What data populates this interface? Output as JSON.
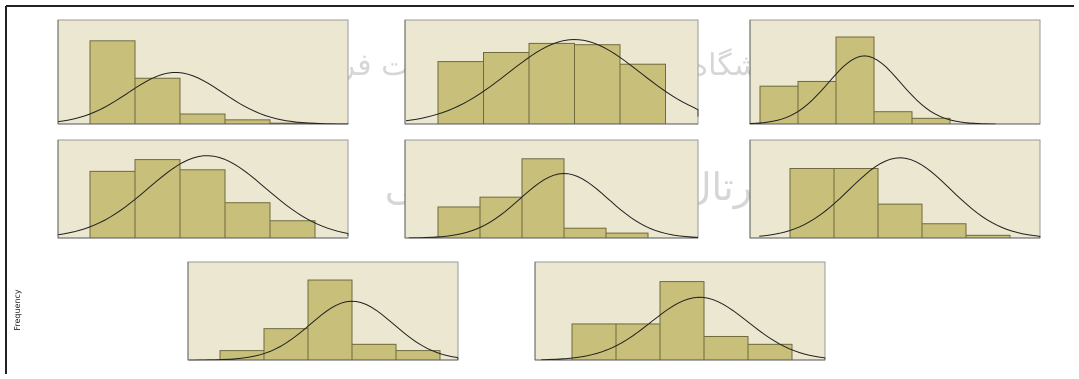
{
  "figure": {
    "left_label": "Frequency",
    "watermark_top": "پژوهشگاه علوم انسانی و مطالعات فرهنگی",
    "watermark_bottom": "پرتال جامع علوم انسانی"
  },
  "chart_data": [
    {
      "type": "bar",
      "ylabel": "Frequency",
      "values": [
        100,
        55,
        12,
        5,
        1
      ],
      "ylim": [
        0,
        125
      ],
      "show_normal_curve": true,
      "normal_curve": {
        "mean": 1.9,
        "sd": 1.05,
        "peak": 62
      }
    },
    {
      "type": "bar",
      "ylabel": "Frequency",
      "values": [
        48,
        55,
        62,
        61,
        46
      ],
      "ylim": [
        0,
        80
      ],
      "show_normal_curve": true,
      "normal_curve": {
        "mean": 3.0,
        "sd": 1.45,
        "peak": 65
      }
    },
    {
      "type": "bar",
      "ylabel": "Frequency",
      "values": [
        40,
        45,
        92,
        13,
        6
      ],
      "ylim": [
        0,
        110
      ],
      "show_normal_curve": true,
      "normal_curve": {
        "mean": 2.75,
        "sd": 0.95,
        "peak": 72
      }
    },
    {
      "type": "bar",
      "ylabel": "Frequency",
      "values": [
        85,
        100,
        87,
        45,
        22
      ],
      "ylim": [
        0,
        125
      ],
      "show_normal_curve": true,
      "normal_curve": {
        "mean": 2.6,
        "sd": 1.3,
        "peak": 105
      }
    },
    {
      "type": "bar",
      "ylabel": "Frequency",
      "values": [
        38,
        50,
        97,
        12,
        6
      ],
      "ylim": [
        0,
        120
      ],
      "show_normal_curve": true,
      "normal_curve": {
        "mean": 3.0,
        "sd": 1.05,
        "peak": 79
      }
    },
    {
      "type": "bar",
      "ylabel": "Frequency",
      "values": [
        78,
        78,
        38,
        16,
        3
      ],
      "ylim": [
        0,
        110
      ],
      "show_normal_curve": true,
      "normal_curve": {
        "mean": 2.5,
        "sd": 1.15,
        "peak": 90
      }
    },
    {
      "type": "bar",
      "ylabel": "Frequency",
      "values": [
        12,
        40,
        102,
        20,
        12
      ],
      "ylim": [
        0,
        125
      ],
      "show_normal_curve": true,
      "normal_curve": {
        "mean": 3.0,
        "sd": 0.95,
        "peak": 75
      }
    },
    {
      "type": "bar",
      "ylabel": "Frequency",
      "values": [
        46,
        46,
        100,
        30,
        20
      ],
      "ylim": [
        0,
        125
      ],
      "show_normal_curve": true,
      "normal_curve": {
        "mean": 2.9,
        "sd": 1.1,
        "peak": 80
      }
    }
  ]
}
